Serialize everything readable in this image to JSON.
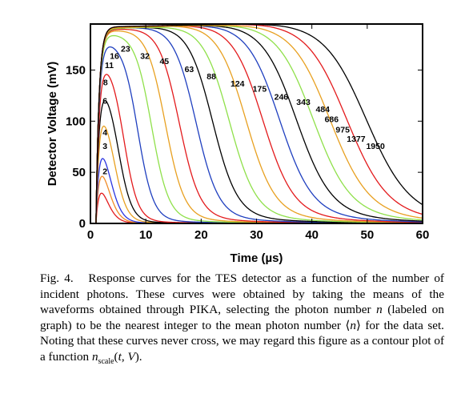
{
  "chart_data": {
    "type": "line",
    "title": "",
    "xlabel": "Time (µs)",
    "ylabel": "Detector Voltage (mV)",
    "xlim": [
      0,
      60
    ],
    "ylim": [
      0,
      195
    ],
    "xticks": [
      0,
      10,
      20,
      30,
      40,
      50,
      60
    ],
    "yticks": [
      0,
      50,
      100,
      150
    ],
    "grid": false,
    "legend": "none",
    "series": [
      {
        "label": "2",
        "color": "#e31a1c",
        "peak": 55,
        "decay_time": 2.6,
        "label_pos": [
          2.2,
          48
        ]
      },
      {
        "label": "3",
        "color": "#f08c28",
        "peak": 76,
        "decay_time": 3.0,
        "label_pos": [
          2.2,
          73
        ]
      },
      {
        "label": "4",
        "color": "#2a35e0",
        "peak": 95,
        "decay_time": 3.4,
        "label_pos": [
          2.2,
          86
        ]
      },
      {
        "label": "6",
        "color": "#e8a020",
        "peak": 124,
        "decay_time": 4.2,
        "label_pos": [
          2.2,
          117
        ]
      },
      {
        "label": "8",
        "color": "#000000",
        "peak": 143,
        "decay_time": 5.0,
        "label_pos": [
          2.3,
          135
        ]
      },
      {
        "label": "11",
        "color": "#e31a1c",
        "peak": 162,
        "decay_time": 6.0,
        "label_pos": [
          2.6,
          152
        ]
      },
      {
        "label": "16",
        "color": "#1f3fbf",
        "peak": 178,
        "decay_time": 8.5,
        "label_pos": [
          3.5,
          161
        ]
      },
      {
        "label": "23",
        "color": "#8fe04a",
        "peak": 185,
        "decay_time": 11.0,
        "label_pos": [
          5.5,
          168
        ]
      },
      {
        "label": "32",
        "color": "#e8a020",
        "peak": 188,
        "decay_time": 13.5,
        "label_pos": [
          9.0,
          161
        ]
      },
      {
        "label": "45",
        "color": "#e31a1c",
        "peak": 189,
        "decay_time": 16.0,
        "label_pos": [
          12.5,
          156
        ]
      },
      {
        "label": "63",
        "color": "#1f3fbf",
        "peak": 190,
        "decay_time": 19.0,
        "label_pos": [
          17.0,
          148
        ]
      },
      {
        "label": "88",
        "color": "#000000",
        "peak": 190,
        "decay_time": 22.0,
        "label_pos": [
          21.0,
          141
        ]
      },
      {
        "label": "124",
        "color": "#8fe04a",
        "peak": 190,
        "decay_time": 25.0,
        "label_pos": [
          25.3,
          134
        ]
      },
      {
        "label": "175",
        "color": "#e8a020",
        "peak": 191,
        "decay_time": 28.0,
        "label_pos": [
          29.3,
          129
        ]
      },
      {
        "label": "246",
        "color": "#e31a1c",
        "peak": 191,
        "decay_time": 31.0,
        "label_pos": [
          33.2,
          121
        ]
      },
      {
        "label": "343",
        "color": "#1f3fbf",
        "peak": 191,
        "decay_time": 34.0,
        "label_pos": [
          37.2,
          116
        ]
      },
      {
        "label": "484",
        "color": "#000000",
        "peak": 191,
        "decay_time": 37.0,
        "label_pos": [
          40.7,
          109
        ]
      },
      {
        "label": "686",
        "color": "#8fe04a",
        "peak": 191,
        "decay_time": 40.0,
        "label_pos": [
          42.3,
          99
        ]
      },
      {
        "label": "975",
        "color": "#e8a020",
        "peak": 191,
        "decay_time": 43.0,
        "label_pos": [
          44.3,
          89
        ]
      },
      {
        "label": "1377",
        "color": "#e31a1c",
        "peak": 192,
        "decay_time": 46.0,
        "label_pos": [
          46.3,
          80
        ]
      },
      {
        "label": "1950",
        "color": "#000000",
        "peak": 192,
        "decay_time": 49.5,
        "label_pos": [
          49.8,
          73
        ]
      }
    ]
  },
  "caption": {
    "lead": "Fig. 4.   ",
    "text": "Response curves for the TES detector as a function of the number of incident photons. These curves were obtained by taking the means of the waveforms obtained through PIKA, selecting the photon number n (labeled on graph) to be the nearest integer to the mean photon number ⟨n⟩ for the data set. Noting that these curves never cross, we may regard this figure as a contour plot of a function n_scale(t, V)."
  }
}
